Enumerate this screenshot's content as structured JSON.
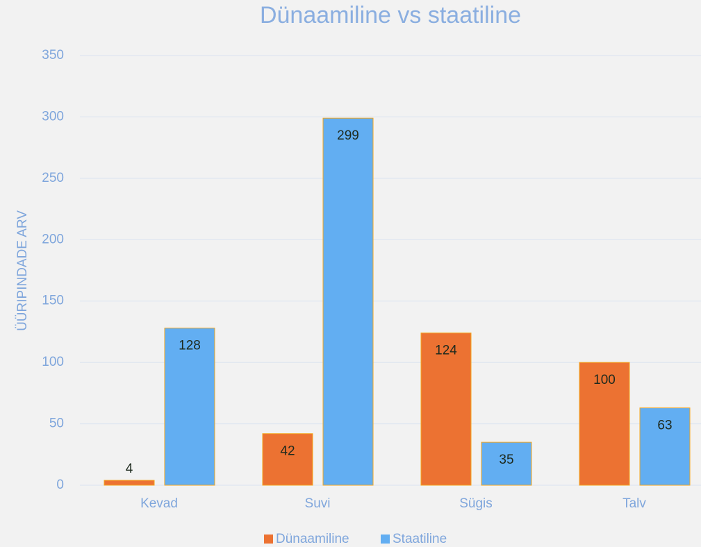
{
  "chart_data": {
    "type": "bar",
    "title": "Dünaamiline vs staatiline",
    "y_label": "ÜÜRIPINDADE ARV",
    "categories": [
      "Kevad",
      "Suvi",
      "Sügis",
      "Talv"
    ],
    "series": [
      {
        "name": "Dünaamiline",
        "color": "#ec7232",
        "values": [
          4,
          42,
          124,
          100
        ]
      },
      {
        "name": "Staatiline",
        "color": "#62aef2",
        "values": [
          128,
          299,
          35,
          63
        ]
      }
    ],
    "ylim": [
      0,
      350
    ],
    "yticks": [
      0,
      50,
      100,
      150,
      200,
      250,
      300,
      350
    ],
    "grid": true,
    "legend": "bottom"
  }
}
